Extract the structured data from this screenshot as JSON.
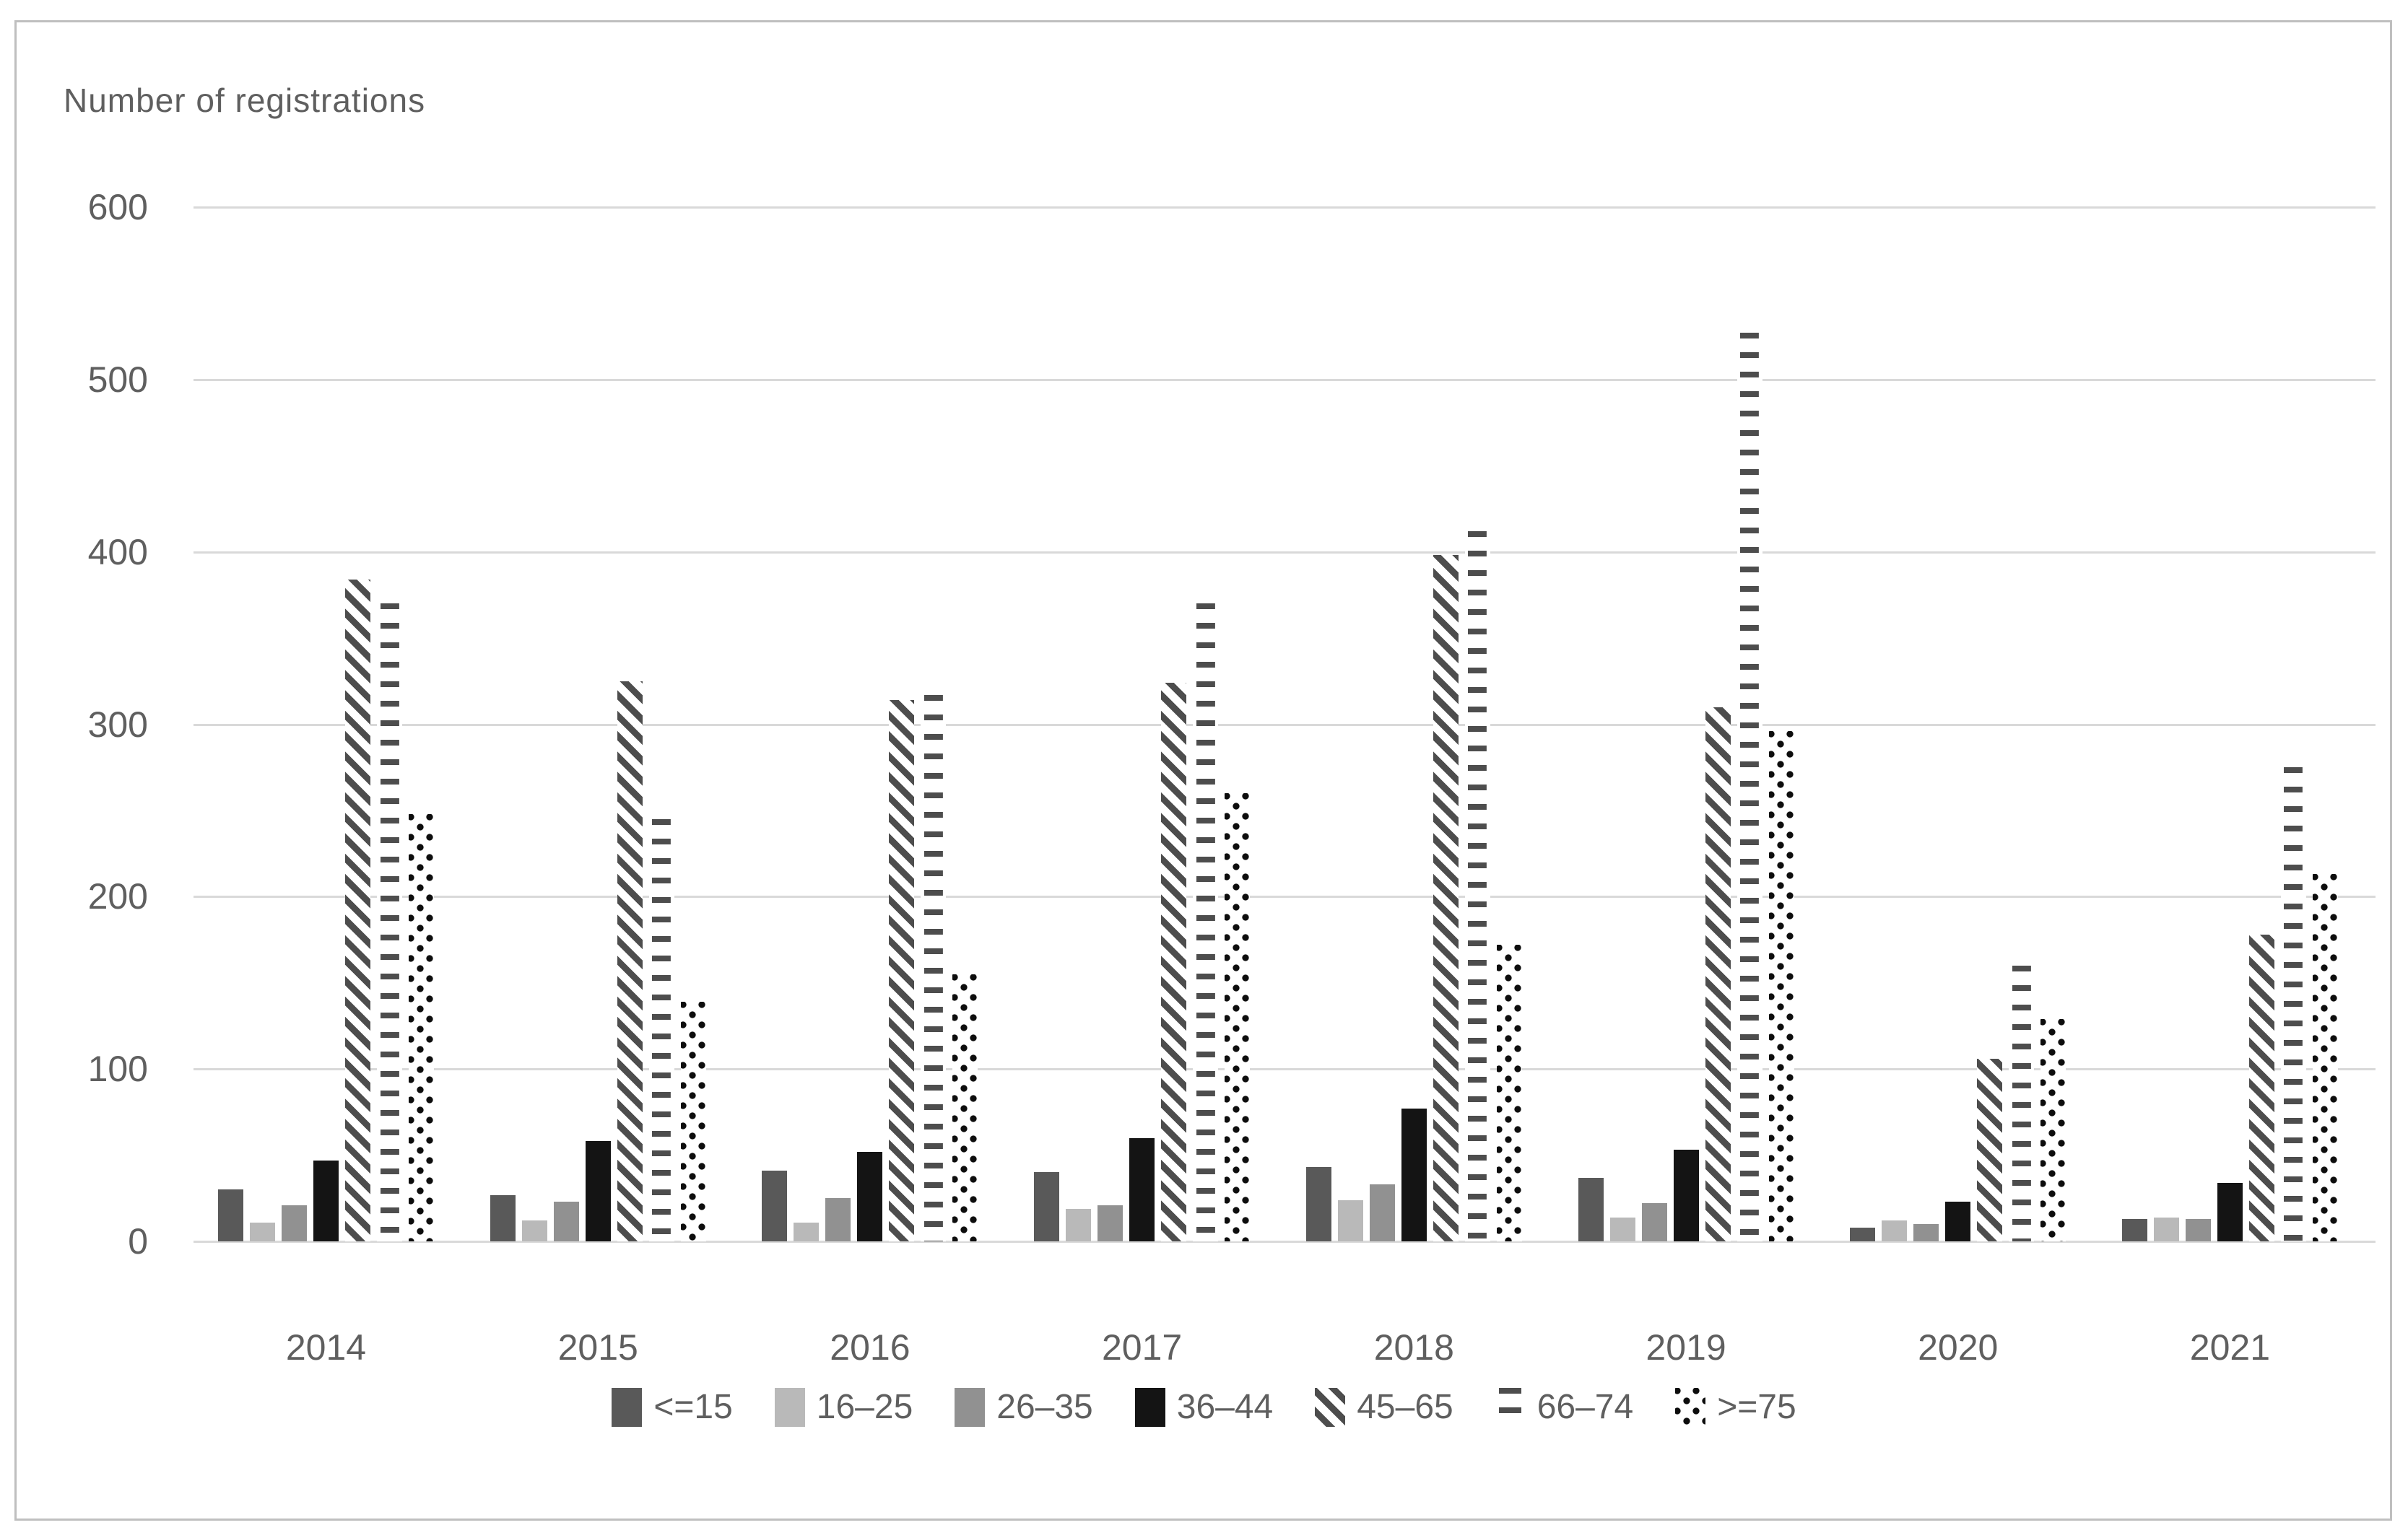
{
  "chart_data": {
    "type": "bar",
    "title": "Number of registrations",
    "categories": [
      "2014",
      "2015",
      "2016",
      "2017",
      "2018",
      "2019",
      "2020",
      "2021"
    ],
    "series": [
      {
        "name": "<=15",
        "style": "solid",
        "color": "#595959",
        "values": [
          30,
          27,
          41,
          40,
          43,
          37,
          8,
          13
        ]
      },
      {
        "name": "16–25",
        "style": "solid",
        "color": "#b9b9b9",
        "values": [
          11,
          12,
          11,
          19,
          24,
          14,
          12,
          14
        ]
      },
      {
        "name": "26–35",
        "style": "solid",
        "color": "#919191",
        "values": [
          21,
          23,
          25,
          21,
          33,
          22,
          10,
          13
        ]
      },
      {
        "name": "36–44",
        "style": "solid",
        "color": "#141414",
        "values": [
          47,
          58,
          52,
          60,
          77,
          53,
          23,
          34
        ]
      },
      {
        "name": "45–65",
        "style": "diagonal-hatch",
        "color": "#4d4d4d",
        "values": [
          384,
          325,
          314,
          324,
          398,
          310,
          106,
          178
        ]
      },
      {
        "name": "66–74",
        "style": "horizontal-dash",
        "color": "#4d4d4d",
        "values": [
          370,
          245,
          317,
          370,
          412,
          527,
          160,
          275
        ]
      },
      {
        "name": ">=75",
        "style": "dots",
        "color": "#0d0d0d",
        "values": [
          248,
          139,
          155,
          260,
          172,
          296,
          129,
          213
        ]
      }
    ],
    "ylim": [
      0,
      600
    ],
    "yticks": [
      0,
      100,
      200,
      300,
      400,
      500,
      600
    ],
    "grid": true,
    "legend_position": "bottom",
    "colors": {
      "gridline": "#d9d9d9",
      "text": "#5f5f5f",
      "frame_border": "#bfbfbf",
      "background": "#ffffff"
    }
  }
}
